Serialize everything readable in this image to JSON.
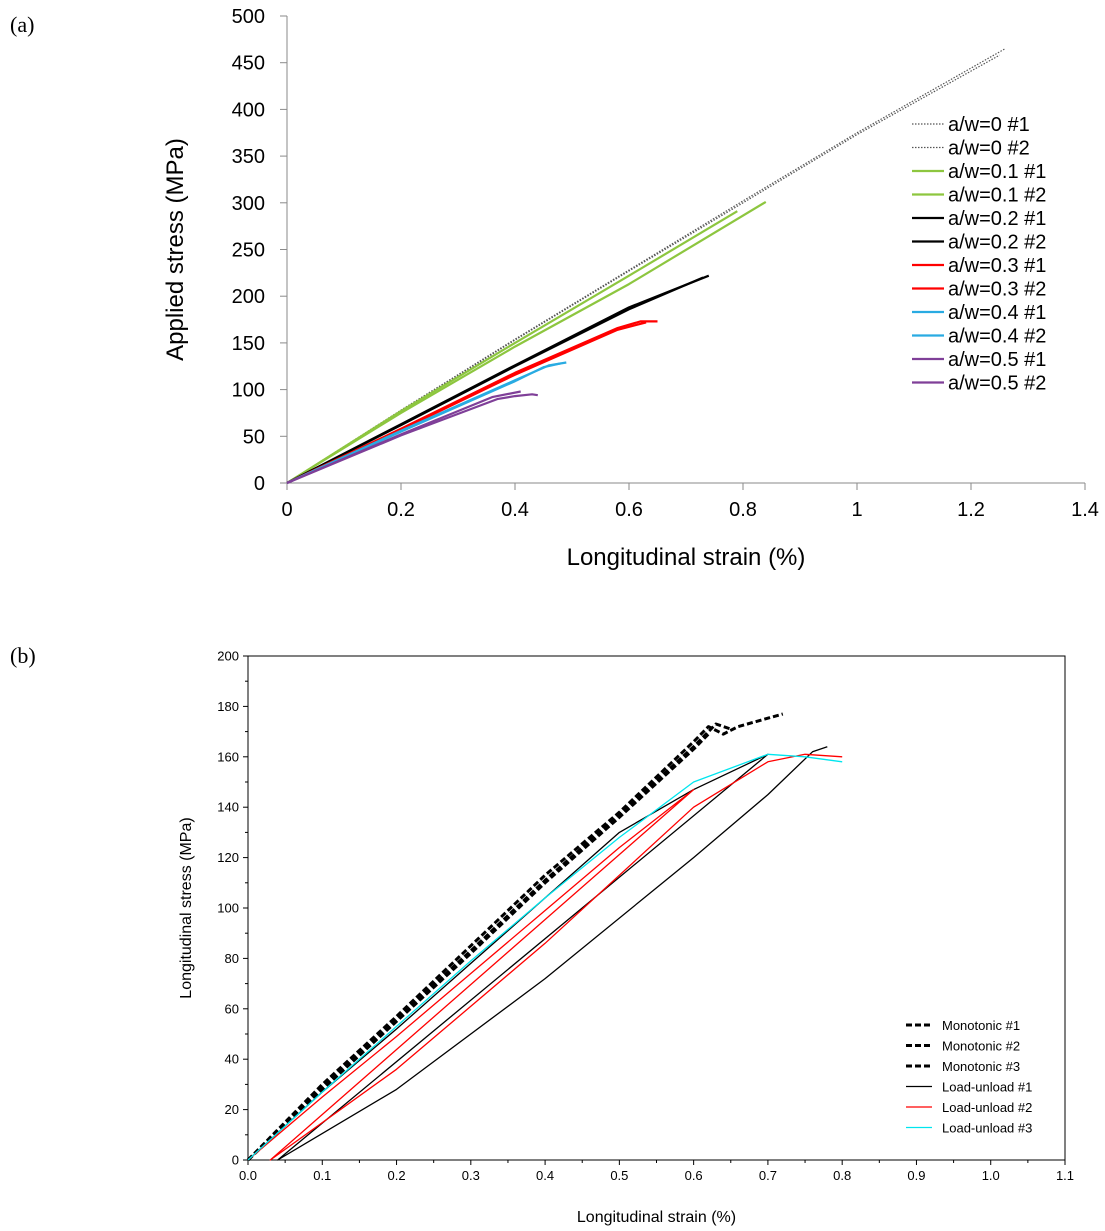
{
  "panels": {
    "a_label": "(a)",
    "b_label": "(b)"
  },
  "chart_data": [
    {
      "type": "line",
      "panel": "(a)",
      "xlabel": "Longitudinal strain (%)",
      "ylabel": "Applied stress (MPa)",
      "xlim": [
        0,
        1.4
      ],
      "ylim": [
        0,
        500
      ],
      "xticks": [
        "0",
        "0.2",
        "0.4",
        "0.6",
        "0.8",
        "1",
        "1.2",
        "1.4"
      ],
      "yticks": [
        "0",
        "50",
        "100",
        "150",
        "200",
        "250",
        "300",
        "350",
        "400",
        "450",
        "500"
      ],
      "grid": false,
      "legend_position": "right",
      "series": [
        {
          "name": "a/w=0 #1",
          "color": "#555555",
          "style": "dotted",
          "x": [
            0,
            0.2,
            0.4,
            0.6,
            0.8,
            1.0,
            1.26
          ],
          "y": [
            0,
            78,
            154,
            228,
            302,
            375,
            465
          ]
        },
        {
          "name": "a/w=0 #2",
          "color": "#555555",
          "style": "dotted",
          "x": [
            0,
            0.2,
            0.4,
            0.6,
            0.8,
            1.0,
            1.25
          ],
          "y": [
            0,
            77,
            153,
            227,
            300,
            373,
            458
          ]
        },
        {
          "name": "a/w=0.1 #1",
          "color": "#8dc63f",
          "style": "solid",
          "x": [
            0,
            0.2,
            0.4,
            0.6,
            0.79
          ],
          "y": [
            0,
            77,
            150,
            222,
            291
          ]
        },
        {
          "name": "a/w=0.1 #2",
          "color": "#8dc63f",
          "style": "solid",
          "x": [
            0,
            0.2,
            0.4,
            0.6,
            0.84
          ],
          "y": [
            0,
            75,
            146,
            213,
            301
          ]
        },
        {
          "name": "a/w=0.2 #1",
          "color": "#000000",
          "style": "solid",
          "x": [
            0,
            0.2,
            0.4,
            0.6,
            0.74
          ],
          "y": [
            0,
            63,
            126,
            188,
            222
          ]
        },
        {
          "name": "a/w=0.2 #2",
          "color": "#000000",
          "style": "solid",
          "x": [
            0,
            0.2,
            0.4,
            0.6,
            0.73
          ],
          "y": [
            0,
            62,
            125,
            186,
            220
          ]
        },
        {
          "name": "a/w=0.3 #1",
          "color": "#ff0000",
          "style": "solid",
          "x": [
            0,
            0.2,
            0.4,
            0.58,
            0.62,
            0.65
          ],
          "y": [
            0,
            58,
            118,
            166,
            173,
            173
          ]
        },
        {
          "name": "a/w=0.3 #2",
          "color": "#ff0000",
          "style": "solid",
          "x": [
            0,
            0.2,
            0.4,
            0.58,
            0.63
          ],
          "y": [
            0,
            57,
            116,
            164,
            172
          ]
        },
        {
          "name": "a/w=0.4 #1",
          "color": "#29abe2",
          "style": "solid",
          "x": [
            0,
            0.2,
            0.4,
            0.46,
            0.49
          ],
          "y": [
            0,
            56,
            110,
            126,
            129
          ]
        },
        {
          "name": "a/w=0.4 #2",
          "color": "#29abe2",
          "style": "solid",
          "x": [
            0,
            0.2,
            0.4,
            0.45,
            0.48
          ],
          "y": [
            0,
            55,
            109,
            124,
            128
          ]
        },
        {
          "name": "a/w=0.5 #1",
          "color": "#7f3f98",
          "style": "solid",
          "x": [
            0,
            0.2,
            0.36,
            0.41
          ],
          "y": [
            0,
            52,
            92,
            98
          ]
        },
        {
          "name": "a/w=0.5 #2",
          "color": "#7f3f98",
          "style": "solid",
          "x": [
            0,
            0.2,
            0.37,
            0.4,
            0.43,
            0.44
          ],
          "y": [
            0,
            51,
            90,
            93,
            95,
            94
          ]
        }
      ]
    },
    {
      "type": "line",
      "panel": "(b)",
      "xlabel": "Longitudinal strain (%)",
      "ylabel": "Longitudinal stress (MPa)",
      "xlim": [
        0,
        1.1
      ],
      "ylim": [
        0,
        200
      ],
      "xticks": [
        "0.0",
        "0.1",
        "0.2",
        "0.3",
        "0.4",
        "0.5",
        "0.6",
        "0.7",
        "0.8",
        "0.9",
        "1.0",
        "1.1"
      ],
      "yticks": [
        "0",
        "20",
        "40",
        "60",
        "80",
        "100",
        "120",
        "140",
        "160",
        "180",
        "200"
      ],
      "grid": false,
      "legend_position": "bottom-right",
      "series": [
        {
          "name": "Monotonic #1",
          "color": "#000000",
          "style": "dashed",
          "x": [
            0,
            0.1,
            0.2,
            0.3,
            0.4,
            0.5,
            0.6,
            0.62,
            0.64,
            0.66,
            0.72
          ],
          "y": [
            0,
            30,
            57,
            85,
            113,
            138,
            166,
            172,
            169,
            172,
            177
          ]
        },
        {
          "name": "Monotonic #2",
          "color": "#000000",
          "style": "dashed",
          "x": [
            0,
            0.1,
            0.2,
            0.3,
            0.4,
            0.5,
            0.6,
            0.63,
            0.65
          ],
          "y": [
            0,
            29,
            56,
            83,
            111,
            137,
            164,
            173,
            171
          ]
        },
        {
          "name": "Monotonic #3",
          "color": "#000000",
          "style": "dashed",
          "x": [
            0,
            0.1,
            0.2,
            0.3,
            0.4,
            0.5,
            0.6,
            0.62
          ],
          "y": [
            0,
            28,
            55,
            82,
            110,
            136,
            163,
            169
          ]
        },
        {
          "name": "Load-unload #1",
          "color": "#000000",
          "style": "solid",
          "x": [
            0,
            0.1,
            0.2,
            0.3,
            0.4,
            0.5,
            0.6,
            0.7,
            0.04,
            0.2,
            0.4,
            0.6,
            0.7,
            0.76,
            0.78
          ],
          "y": [
            0,
            27,
            52,
            78,
            104,
            130,
            147,
            161,
            0,
            28,
            72,
            120,
            145,
            162,
            164
          ]
        },
        {
          "name": "Load-unload #2",
          "color": "#ff0000",
          "style": "solid",
          "x": [
            0,
            0.1,
            0.2,
            0.3,
            0.4,
            0.5,
            0.6,
            0.03,
            0.2,
            0.4,
            0.6,
            0.7,
            0.75,
            0.8
          ],
          "y": [
            0,
            25,
            49,
            74,
            99,
            124,
            147,
            0,
            36,
            86,
            140,
            158,
            161,
            160
          ]
        },
        {
          "name": "Load-unload #3",
          "color": "#00e5ee",
          "style": "solid",
          "x": [
            0,
            0.1,
            0.2,
            0.3,
            0.4,
            0.5,
            0.6,
            0.7,
            0.75,
            0.8
          ],
          "y": [
            0,
            27,
            53,
            79,
            104,
            128,
            150,
            161,
            160,
            158
          ]
        }
      ]
    }
  ]
}
